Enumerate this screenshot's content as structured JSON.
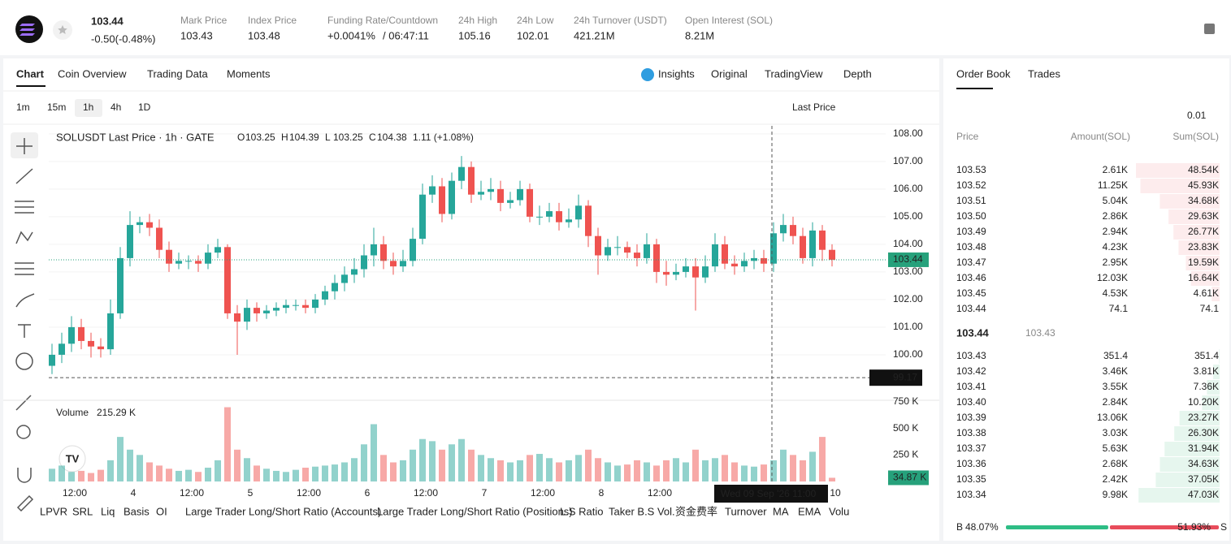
{
  "header": {
    "price": "103.44",
    "change": "-0.50(-0.48%)",
    "stats": [
      {
        "label": "Mark Price",
        "value": "103.43"
      },
      {
        "label": "Index Price",
        "value": "103.48"
      },
      {
        "label": "Funding Rate/Countdown",
        "value": "+0.0041%",
        "extra": "/ 06:47:11"
      },
      {
        "label": "24h High",
        "value": "105.16"
      },
      {
        "label": "24h Low",
        "value": "102.01"
      },
      {
        "label": "24h Turnover (USDT)",
        "value": "421.21M"
      },
      {
        "label": "Open Interest (SOL)",
        "value": "8.21M"
      }
    ]
  },
  "tabs": [
    "Chart",
    "Coin Overview",
    "Trading Data",
    "Moments"
  ],
  "views": [
    "Insights",
    "Original",
    "TradingView",
    "Depth"
  ],
  "intervals": [
    "1m",
    "15m",
    "1h",
    "4h",
    "1D"
  ],
  "price_type": "Last Price",
  "indicators": [
    "LPVR",
    "SRL",
    "Liq",
    "Basis",
    "OI",
    "Large Trader Long/Short Ratio (Accounts)",
    "Large Trader Long/Short Ratio (Positions)",
    "L.S Ratio",
    "Taker B.S Vol.",
    "资金费率",
    "Turnover",
    "MA",
    "EMA",
    "Volu"
  ],
  "chart_data": {
    "type": "candlestick",
    "title": "SOLUSDT Last Price · 1h · GATE",
    "ohlc_legend": [
      {
        "key": "O",
        "value": "103.25"
      },
      {
        "key": "H",
        "value": "104.39"
      },
      {
        "key": "L",
        "value": "103.25"
      },
      {
        "key": "C",
        "value": "104.38"
      }
    ],
    "change": "1.11 (+1.08%)",
    "up_color": "#26a69a",
    "down_color": "#ef5350",
    "open": [
      99.6,
      100.0,
      100.4,
      101.0,
      100.5,
      100.3,
      100.2,
      101.5,
      103.5,
      104.7,
      104.8,
      104.6,
      103.8,
      103.3,
      103.4,
      103.4,
      103.3,
      103.7,
      103.9,
      101.5,
      101.2,
      101.7,
      101.5,
      101.6,
      101.7,
      101.8,
      101.8,
      101.7,
      102.0,
      102.3,
      102.6,
      102.9,
      103.1,
      103.6,
      104.0,
      103.4,
      103.2,
      103.4,
      104.2,
      105.8,
      106.1,
      105.1,
      106.3,
      106.8,
      105.8,
      105.9,
      106.0,
      105.5,
      105.6,
      106.0,
      105.0,
      105.0,
      105.2,
      104.8,
      104.9,
      105.4,
      104.3,
      103.6,
      103.9,
      103.9,
      103.7,
      103.5,
      104.0,
      103.0,
      102.9,
      103.0,
      103.2,
      102.8,
      103.2,
      104.0,
      103.3,
      103.2,
      103.4,
      103.5,
      103.3,
      104.4,
      104.7,
      104.3,
      103.5,
      104.5,
      103.8
    ],
    "high": [
      100.4,
      100.8,
      101.4,
      101.3,
      100.8,
      100.6,
      102.0,
      103.9,
      105.2,
      105.0,
      105.1,
      104.9,
      104.1,
      103.7,
      103.6,
      103.6,
      104.0,
      104.2,
      104.0,
      101.8,
      102.0,
      101.9,
      101.8,
      101.9,
      102.0,
      102.0,
      102.0,
      102.2,
      102.5,
      102.9,
      103.2,
      103.5,
      104.0,
      104.6,
      104.3,
      103.7,
      103.8,
      104.6,
      106.2,
      106.5,
      106.4,
      106.6,
      107.2,
      107.0,
      106.3,
      106.4,
      106.3,
      105.9,
      106.3,
      106.2,
      105.4,
      105.5,
      105.5,
      105.3,
      105.8,
      105.6,
      104.6,
      104.2,
      104.3,
      104.1,
      104.0,
      104.4,
      104.2,
      103.4,
      103.3,
      103.5,
      103.5,
      103.6,
      104.4,
      104.3,
      103.6,
      103.7,
      103.8,
      103.8,
      104.8,
      105.1,
      105.0,
      104.6,
      104.8,
      104.7,
      104.0
    ],
    "low": [
      99.3,
      99.7,
      100.1,
      100.2,
      99.9,
      99.9,
      100.0,
      101.3,
      103.2,
      104.4,
      104.3,
      103.5,
      103.0,
      103.1,
      103.1,
      103.0,
      103.1,
      103.5,
      101.3,
      100.0,
      100.9,
      101.2,
      101.3,
      101.4,
      101.5,
      101.6,
      101.5,
      101.5,
      101.8,
      102.0,
      102.3,
      102.6,
      102.8,
      103.2,
      103.1,
      102.9,
      103.0,
      103.2,
      104.0,
      105.5,
      104.8,
      104.9,
      106.0,
      105.5,
      105.6,
      105.6,
      105.2,
      105.3,
      105.4,
      104.8,
      104.7,
      104.8,
      104.5,
      104.6,
      104.6,
      103.9,
      102.9,
      103.4,
      103.6,
      103.5,
      103.2,
      103.3,
      102.6,
      102.5,
      102.7,
      102.8,
      101.6,
      102.6,
      103.0,
      103.1,
      102.9,
      103.0,
      103.1,
      103.0,
      103.0,
      104.1,
      104.0,
      103.3,
      103.2,
      103.4,
      103.2
    ],
    "close": [
      100.0,
      100.4,
      101.0,
      100.5,
      100.3,
      100.2,
      101.5,
      103.5,
      104.7,
      104.8,
      104.6,
      103.8,
      103.3,
      103.4,
      103.4,
      103.3,
      103.7,
      103.9,
      101.5,
      101.2,
      101.7,
      101.5,
      101.6,
      101.7,
      101.8,
      101.8,
      101.7,
      102.0,
      102.3,
      102.6,
      102.9,
      103.1,
      103.6,
      104.0,
      103.4,
      103.2,
      103.4,
      104.2,
      105.8,
      106.1,
      105.1,
      106.3,
      106.8,
      105.8,
      105.9,
      106.0,
      105.5,
      105.6,
      106.0,
      105.0,
      105.0,
      105.2,
      104.8,
      104.9,
      105.4,
      104.3,
      103.6,
      103.9,
      103.9,
      103.7,
      103.5,
      104.0,
      103.0,
      102.9,
      103.0,
      103.2,
      102.8,
      103.2,
      104.0,
      103.3,
      103.2,
      103.4,
      103.5,
      103.3,
      104.4,
      104.7,
      104.3,
      103.5,
      104.5,
      103.8,
      103.44
    ],
    "volume": [
      120,
      150,
      90,
      100,
      80,
      110,
      200,
      420,
      300,
      250,
      180,
      150,
      120,
      100,
      110,
      90,
      130,
      200,
      700,
      300,
      220,
      150,
      120,
      100,
      90,
      110,
      130,
      140,
      150,
      160,
      180,
      220,
      350,
      540,
      250,
      180,
      200,
      300,
      400,
      380,
      300,
      350,
      400,
      300,
      250,
      220,
      200,
      180,
      200,
      250,
      260,
      220,
      180,
      200,
      250,
      300,
      220,
      180,
      150,
      160,
      200,
      180,
      150,
      200,
      220,
      180,
      300,
      200,
      220,
      250,
      180,
      150,
      140,
      160,
      200,
      300,
      250,
      200,
      280,
      420,
      34.87
    ],
    "volume_title": "Volume",
    "volume_last": {
      "value": 215.29,
      "label": "215.29 K"
    },
    "ylim": [
      98.44,
      108.29
    ],
    "yticks": [
      {
        "value": 108,
        "label": "108.00"
      },
      {
        "value": 107,
        "label": "107.00"
      },
      {
        "value": 106,
        "label": "106.00"
      },
      {
        "value": 105,
        "label": "105.00"
      },
      {
        "value": 104,
        "label": "104.00"
      },
      {
        "value": 103,
        "label": "103.00"
      },
      {
        "value": 102,
        "label": "102.00"
      },
      {
        "value": 101,
        "label": "101.00"
      },
      {
        "value": 100,
        "label": "100.00"
      }
    ],
    "vlim": [
      0,
      750
    ],
    "vticks": [
      {
        "value": 750,
        "label": "750 K"
      },
      {
        "value": 500,
        "label": "500 K"
      },
      {
        "value": 250,
        "label": "250 K"
      }
    ],
    "last_price": {
      "value": 103.44,
      "label": "103.44"
    },
    "last_volume": {
      "value": 34.87,
      "label": "34.87 K"
    },
    "crosshair": {
      "value": 99.17,
      "label": "99.17",
      "time": "Wed 09 Sep '26   11:00"
    },
    "xticks": [
      "12:00",
      "4",
      "12:00",
      "5",
      "12:00",
      "6",
      "12:00",
      "7",
      "12:00",
      "8",
      "12:00",
      null,
      null,
      "10"
    ]
  },
  "order_book": {
    "tabs": [
      "Order Book",
      "Trades"
    ],
    "tick_size": "0.01",
    "columns": [
      "Price",
      "Amount(SOL)",
      "Sum(SOL)"
    ],
    "asks": [
      {
        "price": "103.53",
        "amount": "2.61K",
        "sum": {
          "value": 48.54,
          "label": "48.54K"
        }
      },
      {
        "price": "103.52",
        "amount": "11.25K",
        "sum": {
          "value": 45.93,
          "label": "45.93K"
        }
      },
      {
        "price": "103.51",
        "amount": "5.04K",
        "sum": {
          "value": 34.68,
          "label": "34.68K"
        }
      },
      {
        "price": "103.50",
        "amount": "2.86K",
        "sum": {
          "value": 29.63,
          "label": "29.63K"
        }
      },
      {
        "price": "103.49",
        "amount": "2.94K",
        "sum": {
          "value": 26.77,
          "label": "26.77K"
        }
      },
      {
        "price": "103.48",
        "amount": "4.23K",
        "sum": {
          "value": 23.83,
          "label": "23.83K"
        }
      },
      {
        "price": "103.47",
        "amount": "2.95K",
        "sum": {
          "value": 19.59,
          "label": "19.59K"
        }
      },
      {
        "price": "103.46",
        "amount": "12.03K",
        "sum": {
          "value": 16.64,
          "label": "16.64K"
        }
      },
      {
        "price": "103.45",
        "amount": "4.53K",
        "sum": {
          "value": 4.61,
          "label": "4.61K"
        }
      },
      {
        "price": "103.44",
        "amount": "74.1",
        "sum": {
          "value": 0.0741,
          "label": "74.1"
        }
      }
    ],
    "last": "103.44",
    "mark": "103.43",
    "bids": [
      {
        "price": "103.43",
        "amount": "351.4",
        "sum": {
          "value": 0.3514,
          "label": "351.4"
        }
      },
      {
        "price": "103.42",
        "amount": "3.46K",
        "sum": {
          "value": 3.81,
          "label": "3.81K"
        }
      },
      {
        "price": "103.41",
        "amount": "3.55K",
        "sum": {
          "value": 7.36,
          "label": "7.36K"
        }
      },
      {
        "price": "103.40",
        "amount": "2.84K",
        "sum": {
          "value": 10.2,
          "label": "10.20K"
        }
      },
      {
        "price": "103.39",
        "amount": "13.06K",
        "sum": {
          "value": 23.27,
          "label": "23.27K"
        }
      },
      {
        "price": "103.38",
        "amount": "3.03K",
        "sum": {
          "value": 26.3,
          "label": "26.30K"
        }
      },
      {
        "price": "103.37",
        "amount": "5.63K",
        "sum": {
          "value": 31.94,
          "label": "31.94K"
        }
      },
      {
        "price": "103.36",
        "amount": "2.68K",
        "sum": {
          "value": 34.63,
          "label": "34.63K"
        }
      },
      {
        "price": "103.35",
        "amount": "2.42K",
        "sum": {
          "value": 37.05,
          "label": "37.05K"
        }
      },
      {
        "price": "103.34",
        "amount": "9.98K",
        "sum": {
          "value": 47.03,
          "label": "47.03K"
        }
      }
    ],
    "ratio": {
      "buy_key": "B",
      "buy": {
        "value": 48.07,
        "label": "48.07%"
      },
      "sell": {
        "value": 51.93,
        "label": "51.93%"
      },
      "sell_key": "S"
    }
  }
}
